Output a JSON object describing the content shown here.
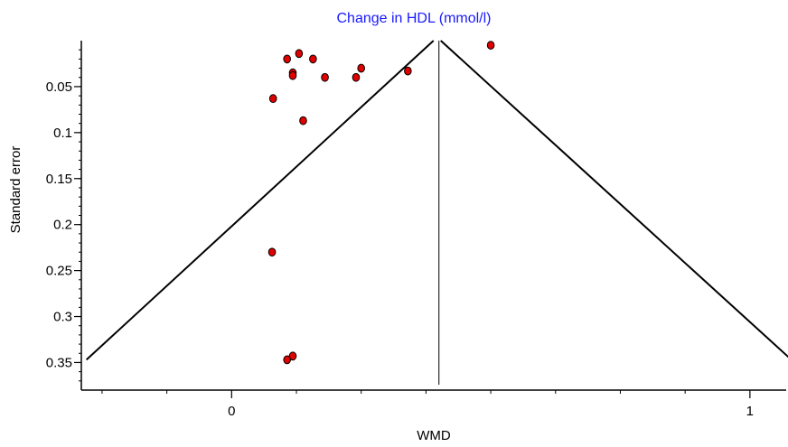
{
  "chart_data": {
    "type": "scatter",
    "title": "Change in HDL (mmol/l)",
    "title_color": "#1a1aff",
    "xlabel": "WMD",
    "ylabel": "Standard error",
    "xlim": [
      -0.29,
      1.07
    ],
    "ylim": [
      0.0,
      0.38
    ],
    "y_reversed": true,
    "x_ticks": [
      0,
      1
    ],
    "x_tick_labels": [
      "0",
      "1"
    ],
    "y_ticks": [
      0.05,
      0.1,
      0.15,
      0.2,
      0.25,
      0.3,
      0.35
    ],
    "y_tick_labels": [
      "0.05",
      "0.1",
      "0.15",
      "0.2",
      "0.25",
      "0.3",
      "0.35"
    ],
    "pooled_estimate": 0.4,
    "funnel_limits": "95% pseudo-confidence",
    "marker_color": "#e00000",
    "points": [
      {
        "x": 0.5,
        "y": 0.005
      },
      {
        "x": 0.13,
        "y": 0.014
      },
      {
        "x": 0.107,
        "y": 0.02
      },
      {
        "x": 0.157,
        "y": 0.02
      },
      {
        "x": 0.25,
        "y": 0.03
      },
      {
        "x": 0.34,
        "y": 0.033
      },
      {
        "x": 0.118,
        "y": 0.035
      },
      {
        "x": 0.118,
        "y": 0.038
      },
      {
        "x": 0.18,
        "y": 0.04
      },
      {
        "x": 0.24,
        "y": 0.04
      },
      {
        "x": 0.08,
        "y": 0.063
      },
      {
        "x": 0.138,
        "y": 0.087
      },
      {
        "x": 0.078,
        "y": 0.23
      },
      {
        "x": 0.118,
        "y": 0.343
      },
      {
        "x": 0.107,
        "y": 0.347
      }
    ]
  }
}
